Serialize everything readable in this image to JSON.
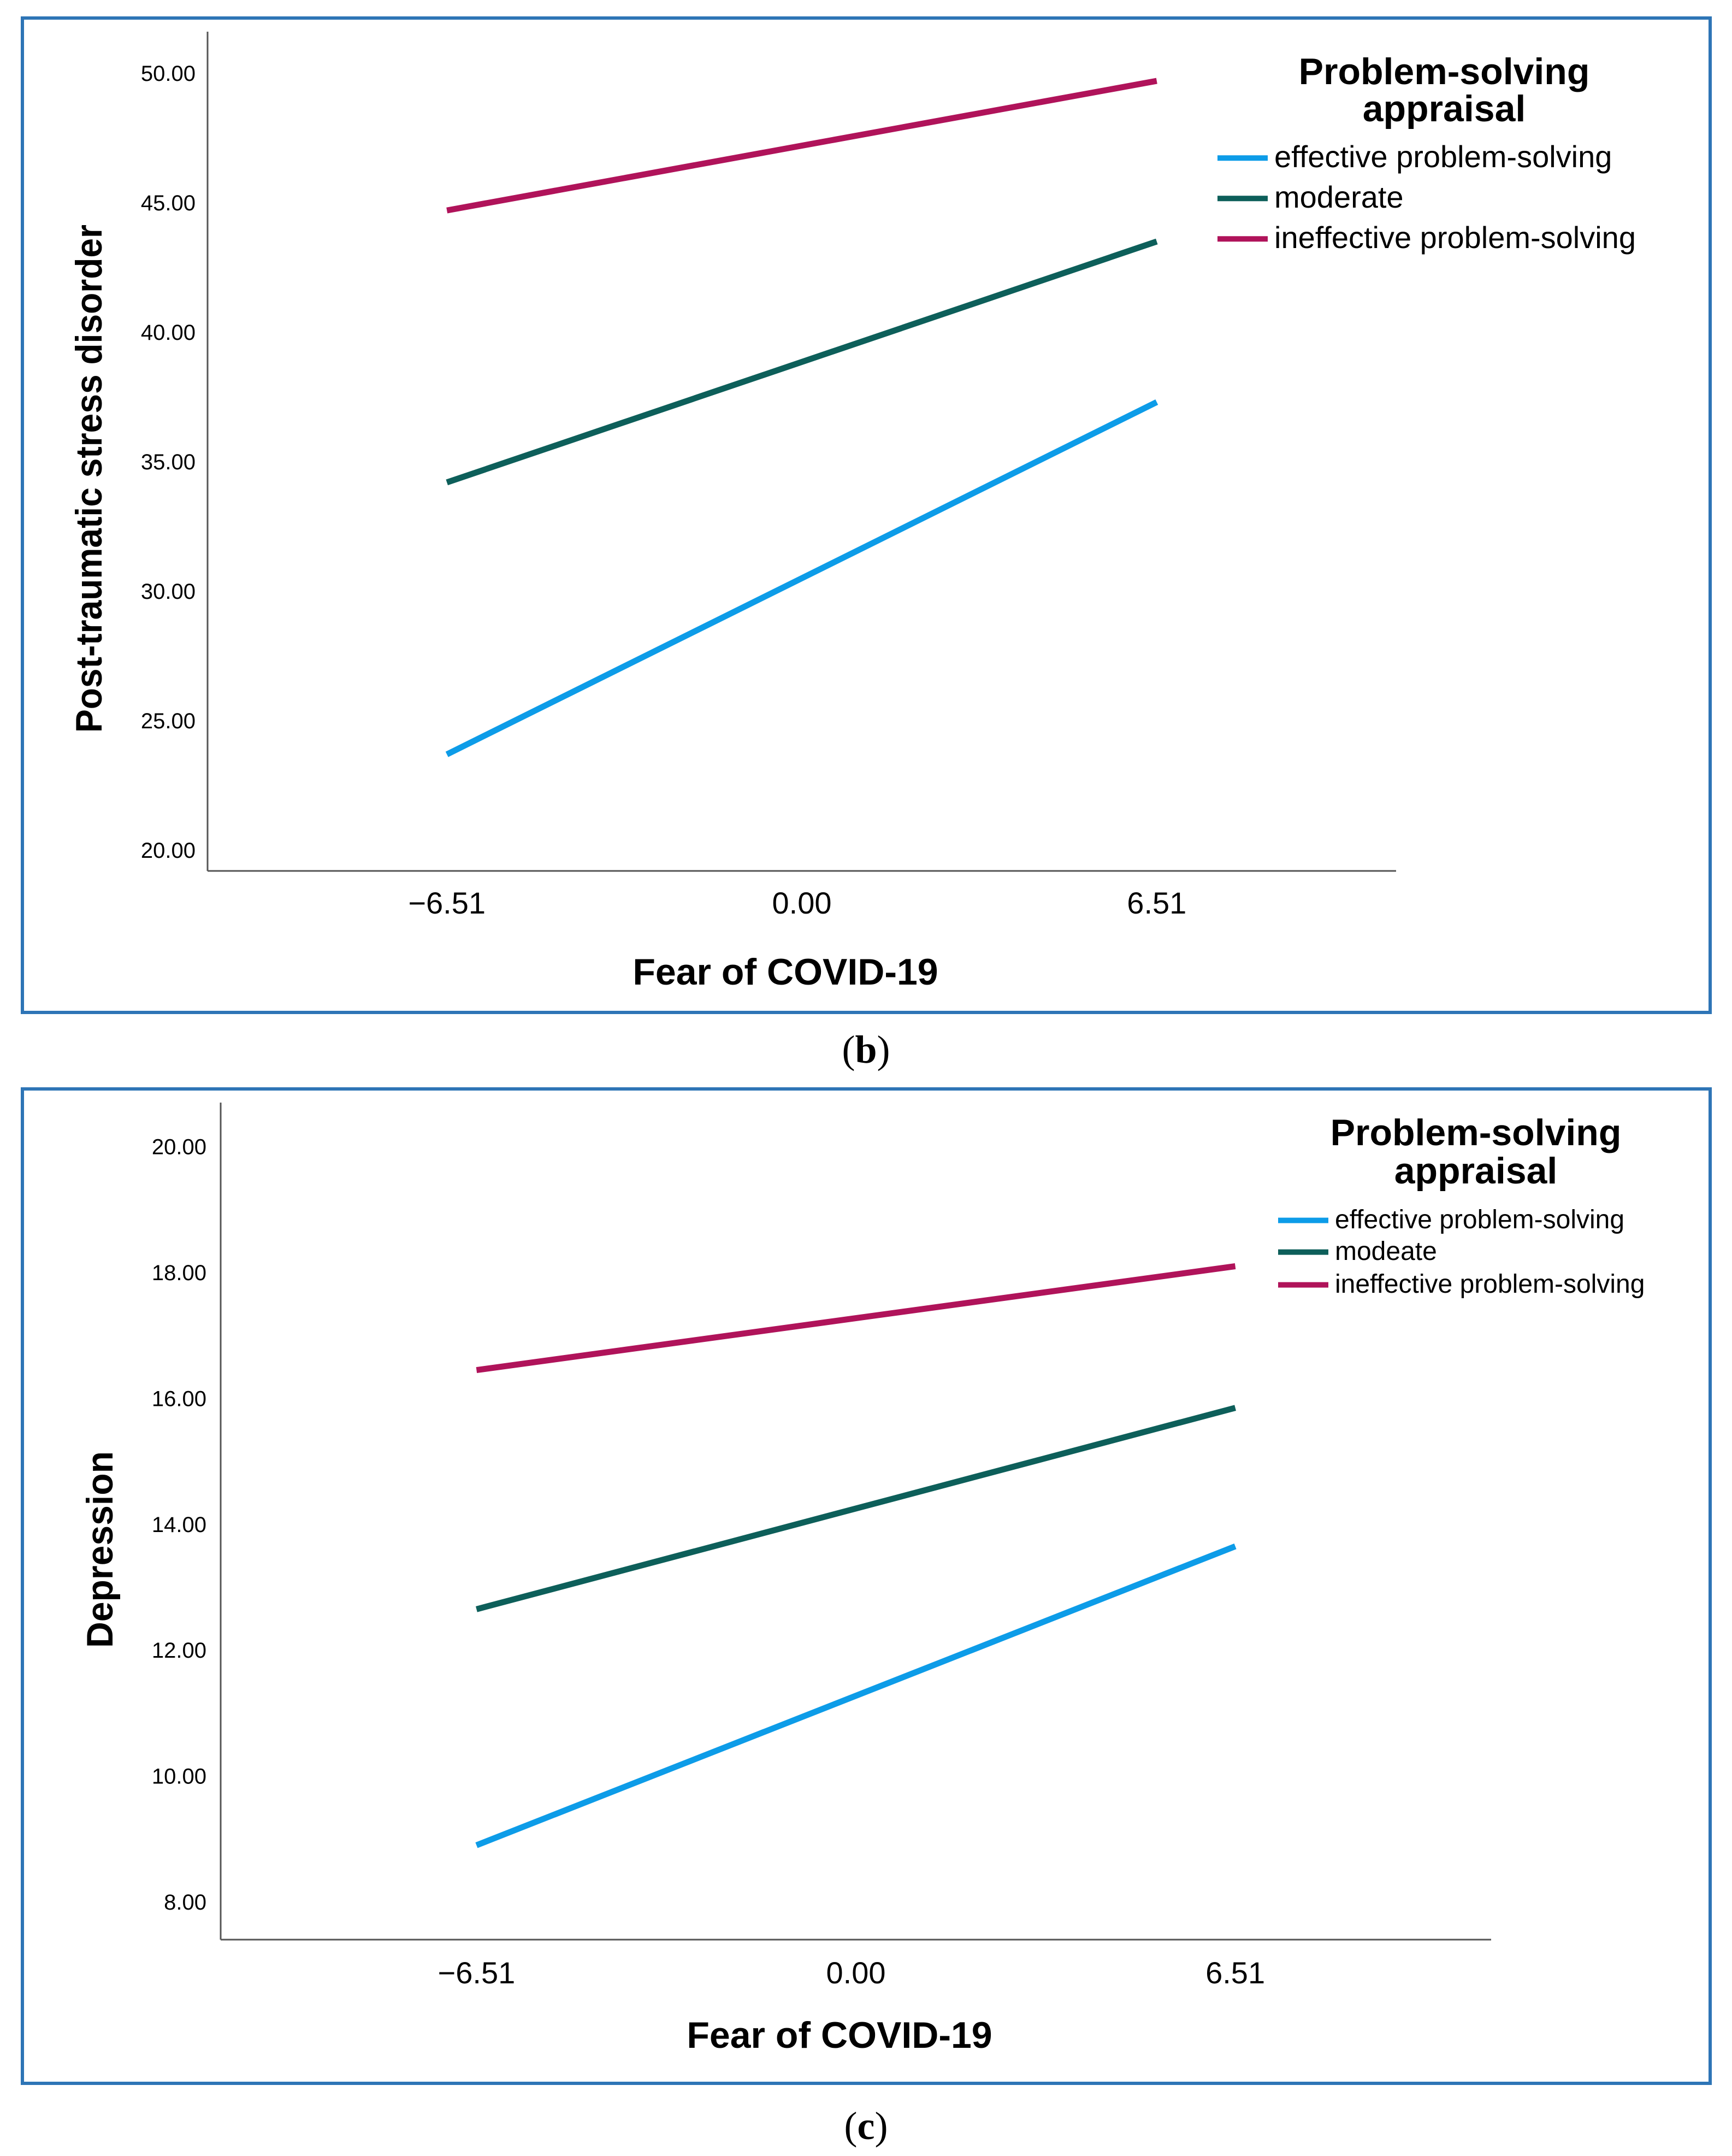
{
  "colors": {
    "border": "#2e75b6",
    "effective": "#0d9ce8",
    "moderate": "#0d5f5a",
    "ineffective": "#b0135a"
  },
  "captions": {
    "b": {
      "open": "(",
      "letter": "b",
      "close": ")"
    },
    "c": {
      "open": "(",
      "letter": "c",
      "close": ")"
    }
  },
  "chart_data": [
    {
      "type": "line",
      "panel": "b",
      "title": "",
      "xlabel": "Fear of COVID-19",
      "ylabel": "Post-traumatic stress disorder",
      "x": [
        -6.51,
        6.51
      ],
      "x_tick_labels": [
        "−6.51",
        "0.00",
        "6.51"
      ],
      "x_ticks": [
        -6.51,
        0.0,
        6.51
      ],
      "xlim": [
        -10.9,
        10.9
      ],
      "y_tick_labels": [
        "20.00",
        "25.00",
        "30.00",
        "35.00",
        "40.00",
        "45.00",
        "50.00"
      ],
      "y_ticks": [
        20,
        25,
        30,
        35,
        40,
        45,
        50
      ],
      "ylim": [
        19.2,
        51.6
      ],
      "legend_title": "Problem-solving appraisal",
      "legend_title_lines": [
        "Problem-solving",
        "appraisal"
      ],
      "legend_position": "top-right",
      "series": [
        {
          "name": "effective problem-solving",
          "color_key": "effective",
          "values": [
            23.7,
            37.3
          ]
        },
        {
          "name": "moderate",
          "color_key": "moderate",
          "values": [
            34.2,
            43.5
          ]
        },
        {
          "name": "ineffective problem-solving",
          "color_key": "ineffective",
          "values": [
            44.7,
            49.7
          ]
        }
      ]
    },
    {
      "type": "line",
      "panel": "c",
      "title": "",
      "xlabel": "Fear of COVID-19",
      "ylabel": "Depression",
      "x": [
        -6.51,
        6.51
      ],
      "x_tick_labels": [
        "−6.51",
        "0.00",
        "6.51"
      ],
      "x_ticks": [
        -6.51,
        0.0,
        6.51
      ],
      "xlim": [
        -10.9,
        10.9
      ],
      "y_tick_labels": [
        "8.00",
        "10.00",
        "12.00",
        "14.00",
        "16.00",
        "18.00",
        "20.00"
      ],
      "y_ticks": [
        8,
        10,
        12,
        14,
        16,
        18,
        20
      ],
      "ylim": [
        7.4,
        20.7
      ],
      "legend_title": "Problem-solving appraisal",
      "legend_title_lines": [
        "Problem-solving",
        "appraisal"
      ],
      "legend_position": "top-right",
      "series": [
        {
          "name": "effective problem-solving",
          "color_key": "effective",
          "values": [
            8.9,
            13.65
          ]
        },
        {
          "name": "modeate",
          "color_key": "moderate",
          "values": [
            12.65,
            15.85
          ]
        },
        {
          "name": "ineffective problem-solving",
          "color_key": "ineffective",
          "values": [
            16.45,
            18.1
          ]
        }
      ]
    }
  ]
}
